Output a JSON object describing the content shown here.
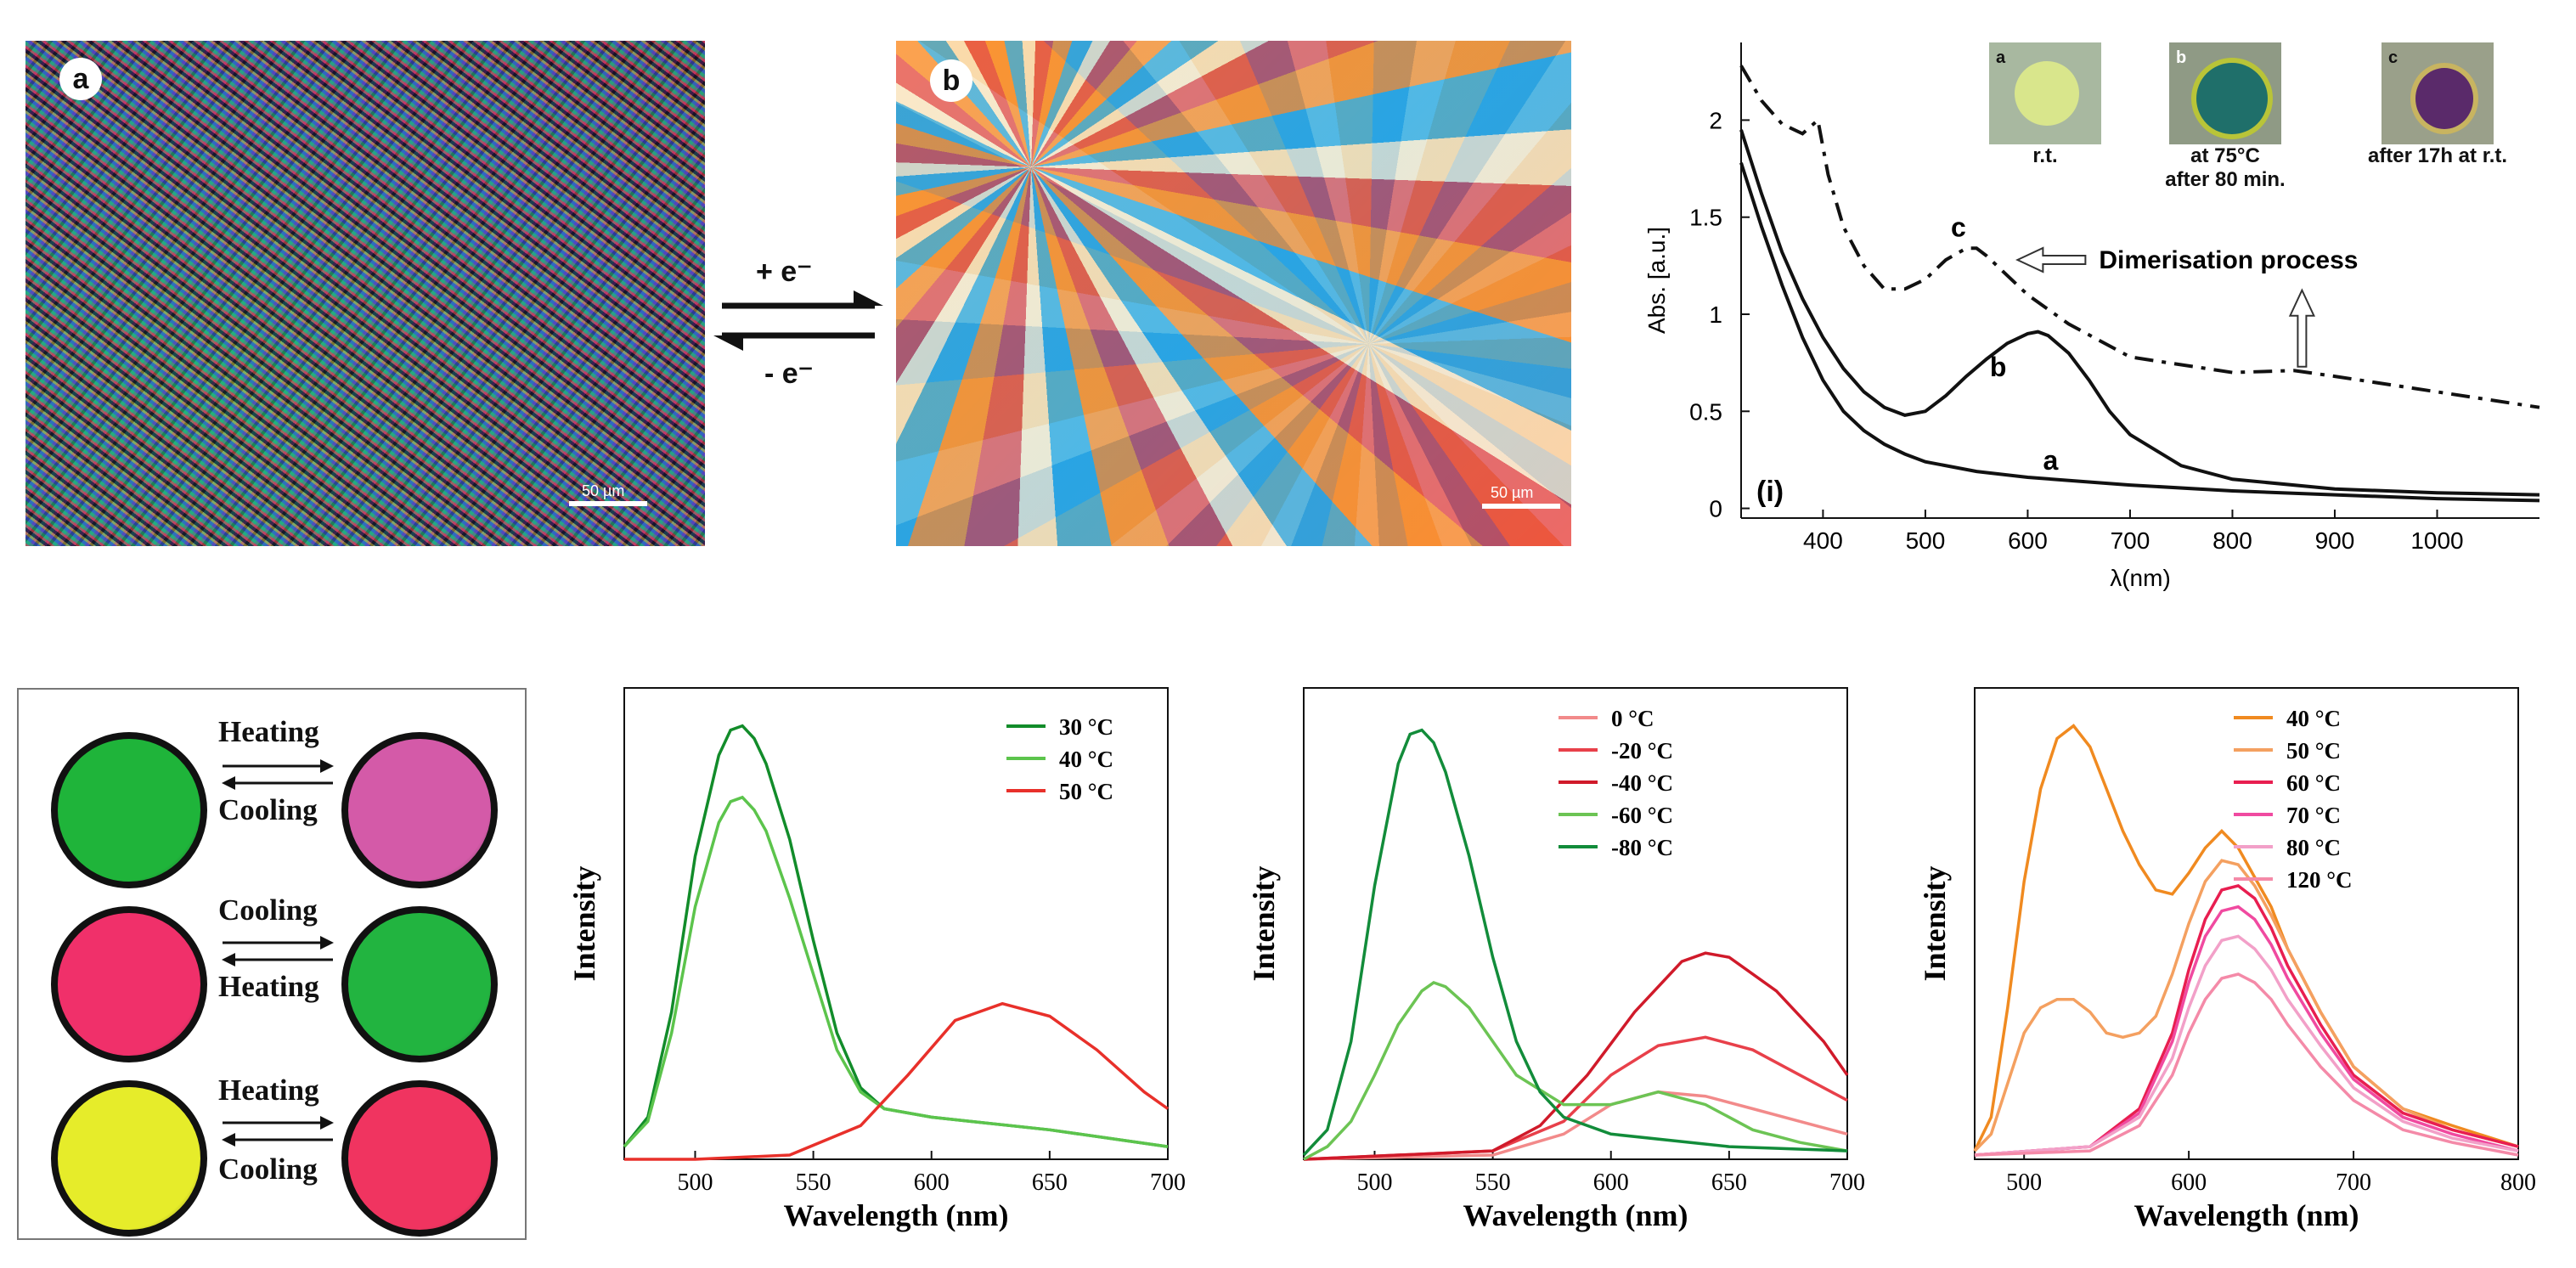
{
  "panels": {
    "micrograph_a": {
      "label": "a",
      "scale": "50 µm"
    },
    "micrograph_b": {
      "label": "b",
      "scale": "50 µm"
    },
    "reaction": {
      "forward": "+ e⁻",
      "reverse": "- e⁻"
    }
  },
  "insets": [
    {
      "tag": "a",
      "caption": [
        "r.t."
      ],
      "color": "#cfe08a"
    },
    {
      "tag": "b",
      "caption": [
        "at 75°C",
        "after 80 min."
      ],
      "color": "#1f6f6a"
    },
    {
      "tag": "c",
      "caption": [
        "after 17h at r.t."
      ],
      "color": "#5a2a6a"
    }
  ],
  "dots": {
    "rows": [
      {
        "left_color": "#1fb43a",
        "right_color": "#d45aa8",
        "top_label": "Heating",
        "bottom_label": "Cooling"
      },
      {
        "left_color": "#f0306a",
        "right_color": "#22b440",
        "top_label": "Cooling",
        "bottom_label": "Heating"
      },
      {
        "left_color": "#e6ec2a",
        "right_color": "#f03460",
        "top_label": "Heating",
        "bottom_label": "Cooling"
      }
    ]
  },
  "chart_data": [
    {
      "type": "line",
      "id": "absorption",
      "xlabel": "λ(nm)",
      "ylabel": "Abs. [a.u.]",
      "panel_label": "(i)",
      "xlim": [
        320,
        1100
      ],
      "ylim": [
        -0.05,
        2.4
      ],
      "xticks": [
        400,
        500,
        600,
        700,
        800,
        900,
        1000
      ],
      "yticks": [
        0,
        0.5,
        1,
        1.5,
        2
      ],
      "ytick_labels": [
        "0",
        "0.5",
        "1",
        "1.5",
        "2"
      ],
      "annotation": "Dimerisation process",
      "series": [
        {
          "name": "a",
          "dash": "solid",
          "x": [
            320,
            340,
            360,
            380,
            400,
            420,
            440,
            460,
            480,
            500,
            550,
            600,
            650,
            700,
            800,
            900,
            1000,
            1100
          ],
          "y": [
            1.78,
            1.45,
            1.15,
            0.88,
            0.66,
            0.5,
            0.4,
            0.33,
            0.28,
            0.24,
            0.19,
            0.16,
            0.14,
            0.12,
            0.09,
            0.07,
            0.05,
            0.04
          ]
        },
        {
          "name": "b",
          "dash": "solid",
          "x": [
            320,
            340,
            360,
            380,
            400,
            420,
            440,
            460,
            480,
            500,
            520,
            540,
            560,
            580,
            600,
            610,
            620,
            640,
            660,
            680,
            700,
            750,
            800,
            900,
            1000,
            1100
          ],
          "y": [
            1.95,
            1.62,
            1.32,
            1.08,
            0.88,
            0.72,
            0.6,
            0.52,
            0.48,
            0.5,
            0.58,
            0.68,
            0.77,
            0.85,
            0.9,
            0.91,
            0.89,
            0.8,
            0.66,
            0.5,
            0.38,
            0.22,
            0.15,
            0.1,
            0.08,
            0.07
          ]
        },
        {
          "name": "c",
          "dash": "dashdot",
          "x": [
            320,
            340,
            360,
            380,
            395,
            405,
            420,
            440,
            460,
            480,
            500,
            520,
            540,
            550,
            560,
            580,
            600,
            640,
            700,
            800,
            860,
            900,
            1000,
            1100
          ],
          "y": [
            2.28,
            2.1,
            1.98,
            1.93,
            2.0,
            1.72,
            1.45,
            1.25,
            1.13,
            1.13,
            1.18,
            1.28,
            1.34,
            1.34,
            1.3,
            1.2,
            1.1,
            0.95,
            0.78,
            0.7,
            0.71,
            0.68,
            0.6,
            0.52
          ]
        }
      ],
      "curve_labels": [
        {
          "text": "a",
          "x": 615,
          "y": 0.2
        },
        {
          "text": "b",
          "x": 563,
          "y": 0.68
        },
        {
          "text": "c",
          "x": 525,
          "y": 1.4
        }
      ]
    },
    {
      "type": "line",
      "id": "pl1",
      "xlabel": "Wavelength (nm)",
      "ylabel": "Intensity",
      "xlim": [
        470,
        700
      ],
      "ylim": [
        0,
        1.12
      ],
      "xticks": [
        500,
        550,
        600,
        650,
        700
      ],
      "series": [
        {
          "name": "30 °C",
          "color": "#128c2a",
          "x": [
            470,
            480,
            490,
            500,
            510,
            515,
            520,
            525,
            530,
            540,
            550,
            560,
            570,
            580,
            600,
            650,
            700
          ],
          "y": [
            0.03,
            0.1,
            0.35,
            0.72,
            0.96,
            1.02,
            1.03,
            1.0,
            0.94,
            0.76,
            0.52,
            0.3,
            0.17,
            0.12,
            0.1,
            0.07,
            0.03
          ]
        },
        {
          "name": "40 °C",
          "color": "#5cc44c",
          "x": [
            470,
            480,
            490,
            500,
            510,
            515,
            520,
            525,
            530,
            540,
            550,
            560,
            570,
            580,
            600,
            650,
            700
          ],
          "y": [
            0.03,
            0.09,
            0.3,
            0.6,
            0.8,
            0.85,
            0.86,
            0.83,
            0.78,
            0.62,
            0.44,
            0.26,
            0.16,
            0.12,
            0.1,
            0.07,
            0.03
          ]
        },
        {
          "name": "50 °C",
          "color": "#e8302a",
          "x": [
            470,
            500,
            540,
            570,
            590,
            610,
            630,
            650,
            670,
            690,
            700
          ],
          "y": [
            0.0,
            0.0,
            0.01,
            0.08,
            0.2,
            0.33,
            0.37,
            0.34,
            0.26,
            0.16,
            0.12
          ]
        }
      ]
    },
    {
      "type": "line",
      "id": "pl2",
      "xlabel": "Wavelength (nm)",
      "ylabel": "Intensity",
      "xlim": [
        470,
        700
      ],
      "ylim": [
        0,
        1.12
      ],
      "xticks": [
        500,
        550,
        600,
        650,
        700
      ],
      "series": [
        {
          "name": "0 °C",
          "color": "#f28a8a",
          "x": [
            470,
            550,
            580,
            600,
            620,
            640,
            660,
            680,
            700
          ],
          "y": [
            0.0,
            0.01,
            0.06,
            0.13,
            0.16,
            0.15,
            0.12,
            0.09,
            0.06
          ]
        },
        {
          "name": "-20 °C",
          "color": "#e8404a",
          "x": [
            470,
            550,
            580,
            600,
            620,
            640,
            660,
            680,
            700
          ],
          "y": [
            0.0,
            0.02,
            0.09,
            0.2,
            0.27,
            0.29,
            0.26,
            0.2,
            0.14
          ]
        },
        {
          "name": "-40 °C",
          "color": "#d01a2a",
          "x": [
            470,
            550,
            570,
            590,
            610,
            630,
            640,
            650,
            670,
            690,
            700
          ],
          "y": [
            0.0,
            0.02,
            0.08,
            0.2,
            0.35,
            0.47,
            0.49,
            0.48,
            0.4,
            0.28,
            0.2
          ]
        },
        {
          "name": "-60 °C",
          "color": "#6cc454",
          "x": [
            470,
            480,
            490,
            500,
            510,
            520,
            525,
            530,
            540,
            550,
            560,
            580,
            600,
            620,
            640,
            660,
            680,
            700
          ],
          "y": [
            0.0,
            0.03,
            0.09,
            0.2,
            0.32,
            0.4,
            0.42,
            0.41,
            0.36,
            0.28,
            0.2,
            0.13,
            0.13,
            0.16,
            0.13,
            0.07,
            0.04,
            0.02
          ]
        },
        {
          "name": "-80 °C",
          "color": "#128c3a",
          "x": [
            470,
            480,
            490,
            500,
            510,
            515,
            520,
            525,
            530,
            540,
            550,
            560,
            570,
            580,
            600,
            650,
            700
          ],
          "y": [
            0.01,
            0.07,
            0.28,
            0.65,
            0.94,
            1.01,
            1.02,
            0.99,
            0.92,
            0.72,
            0.48,
            0.28,
            0.16,
            0.1,
            0.06,
            0.03,
            0.02
          ]
        }
      ]
    },
    {
      "type": "line",
      "id": "pl3",
      "xlabel": "Wavelength (nm)",
      "ylabel": "Intensity",
      "xlim": [
        470,
        800
      ],
      "ylim": [
        0,
        1.12
      ],
      "xticks": [
        500,
        600,
        700,
        800
      ],
      "series": [
        {
          "name": "40 °C",
          "color": "#f08a20",
          "x": [
            470,
            480,
            490,
            500,
            510,
            520,
            530,
            540,
            550,
            560,
            570,
            580,
            590,
            600,
            610,
            620,
            630,
            640,
            650,
            660,
            680,
            700,
            730,
            760,
            800
          ],
          "y": [
            0.02,
            0.1,
            0.36,
            0.66,
            0.88,
            1.0,
            1.03,
            0.98,
            0.88,
            0.78,
            0.7,
            0.64,
            0.63,
            0.68,
            0.74,
            0.78,
            0.74,
            0.67,
            0.6,
            0.5,
            0.35,
            0.22,
            0.12,
            0.08,
            0.03
          ]
        },
        {
          "name": "50 °C",
          "color": "#f4a060",
          "x": [
            470,
            480,
            490,
            500,
            510,
            520,
            530,
            540,
            550,
            560,
            570,
            580,
            590,
            600,
            610,
            620,
            630,
            640,
            650,
            660,
            680,
            700,
            730,
            760,
            800
          ],
          "y": [
            0.02,
            0.06,
            0.18,
            0.3,
            0.36,
            0.38,
            0.38,
            0.35,
            0.3,
            0.29,
            0.3,
            0.34,
            0.44,
            0.56,
            0.66,
            0.71,
            0.7,
            0.65,
            0.58,
            0.5,
            0.35,
            0.22,
            0.12,
            0.07,
            0.03
          ]
        },
        {
          "name": "60 °C",
          "color": "#e81e50",
          "x": [
            470,
            540,
            570,
            590,
            600,
            610,
            620,
            630,
            640,
            650,
            660,
            680,
            700,
            730,
            760,
            800
          ],
          "y": [
            0.01,
            0.03,
            0.12,
            0.3,
            0.45,
            0.57,
            0.64,
            0.65,
            0.62,
            0.55,
            0.46,
            0.32,
            0.2,
            0.11,
            0.07,
            0.03
          ]
        },
        {
          "name": "70 °C",
          "color": "#f04aa0",
          "x": [
            470,
            540,
            570,
            590,
            600,
            610,
            620,
            630,
            640,
            650,
            660,
            680,
            700,
            730,
            760,
            800
          ],
          "y": [
            0.01,
            0.03,
            0.11,
            0.28,
            0.42,
            0.53,
            0.59,
            0.6,
            0.57,
            0.51,
            0.43,
            0.3,
            0.19,
            0.1,
            0.06,
            0.02
          ]
        },
        {
          "name": "80 °C",
          "color": "#f2a0c8",
          "x": [
            470,
            540,
            570,
            590,
            600,
            610,
            620,
            630,
            640,
            650,
            660,
            680,
            700,
            730,
            760,
            800
          ],
          "y": [
            0.01,
            0.03,
            0.1,
            0.24,
            0.36,
            0.46,
            0.52,
            0.53,
            0.5,
            0.45,
            0.38,
            0.27,
            0.17,
            0.09,
            0.05,
            0.02
          ]
        },
        {
          "name": "120 °C",
          "color": "#f48aa8",
          "x": [
            470,
            540,
            570,
            590,
            600,
            610,
            620,
            630,
            640,
            650,
            660,
            680,
            700,
            730,
            760,
            800
          ],
          "y": [
            0.01,
            0.02,
            0.08,
            0.2,
            0.3,
            0.38,
            0.43,
            0.44,
            0.42,
            0.38,
            0.32,
            0.22,
            0.14,
            0.07,
            0.04,
            0.01
          ]
        }
      ]
    }
  ]
}
